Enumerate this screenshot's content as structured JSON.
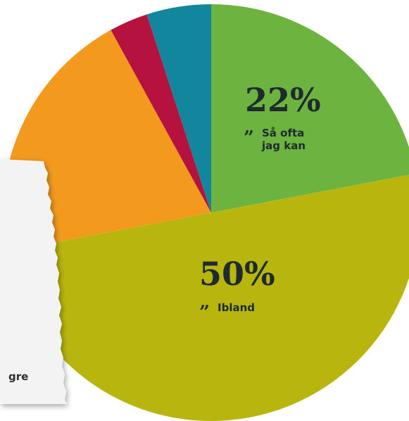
{
  "chart_data": {
    "type": "pie",
    "slices": [
      {
        "key": "sa_ofta",
        "percent": 22,
        "percent_label": "22%",
        "label_lines": [
          "Så ofta",
          "jag kan"
        ],
        "color": "#6db33f"
      },
      {
        "key": "ibland",
        "percent": 50,
        "percent_label": "50%",
        "label_lines": [
          "Ibland"
        ],
        "color": "#b8b60e"
      },
      {
        "key": "orange",
        "percent": 20,
        "color": "#f39a1e"
      },
      {
        "key": "red",
        "percent": 3,
        "color": "#b5123f"
      },
      {
        "key": "teal",
        "percent": 5,
        "color": "#12869c"
      }
    ],
    "start_angle_deg": 0,
    "direction": "clockwise"
  },
  "note": {
    "visible_text": "gre"
  },
  "colors": {
    "paper": "#f3f3f3",
    "text": "#1f2a2f"
  }
}
